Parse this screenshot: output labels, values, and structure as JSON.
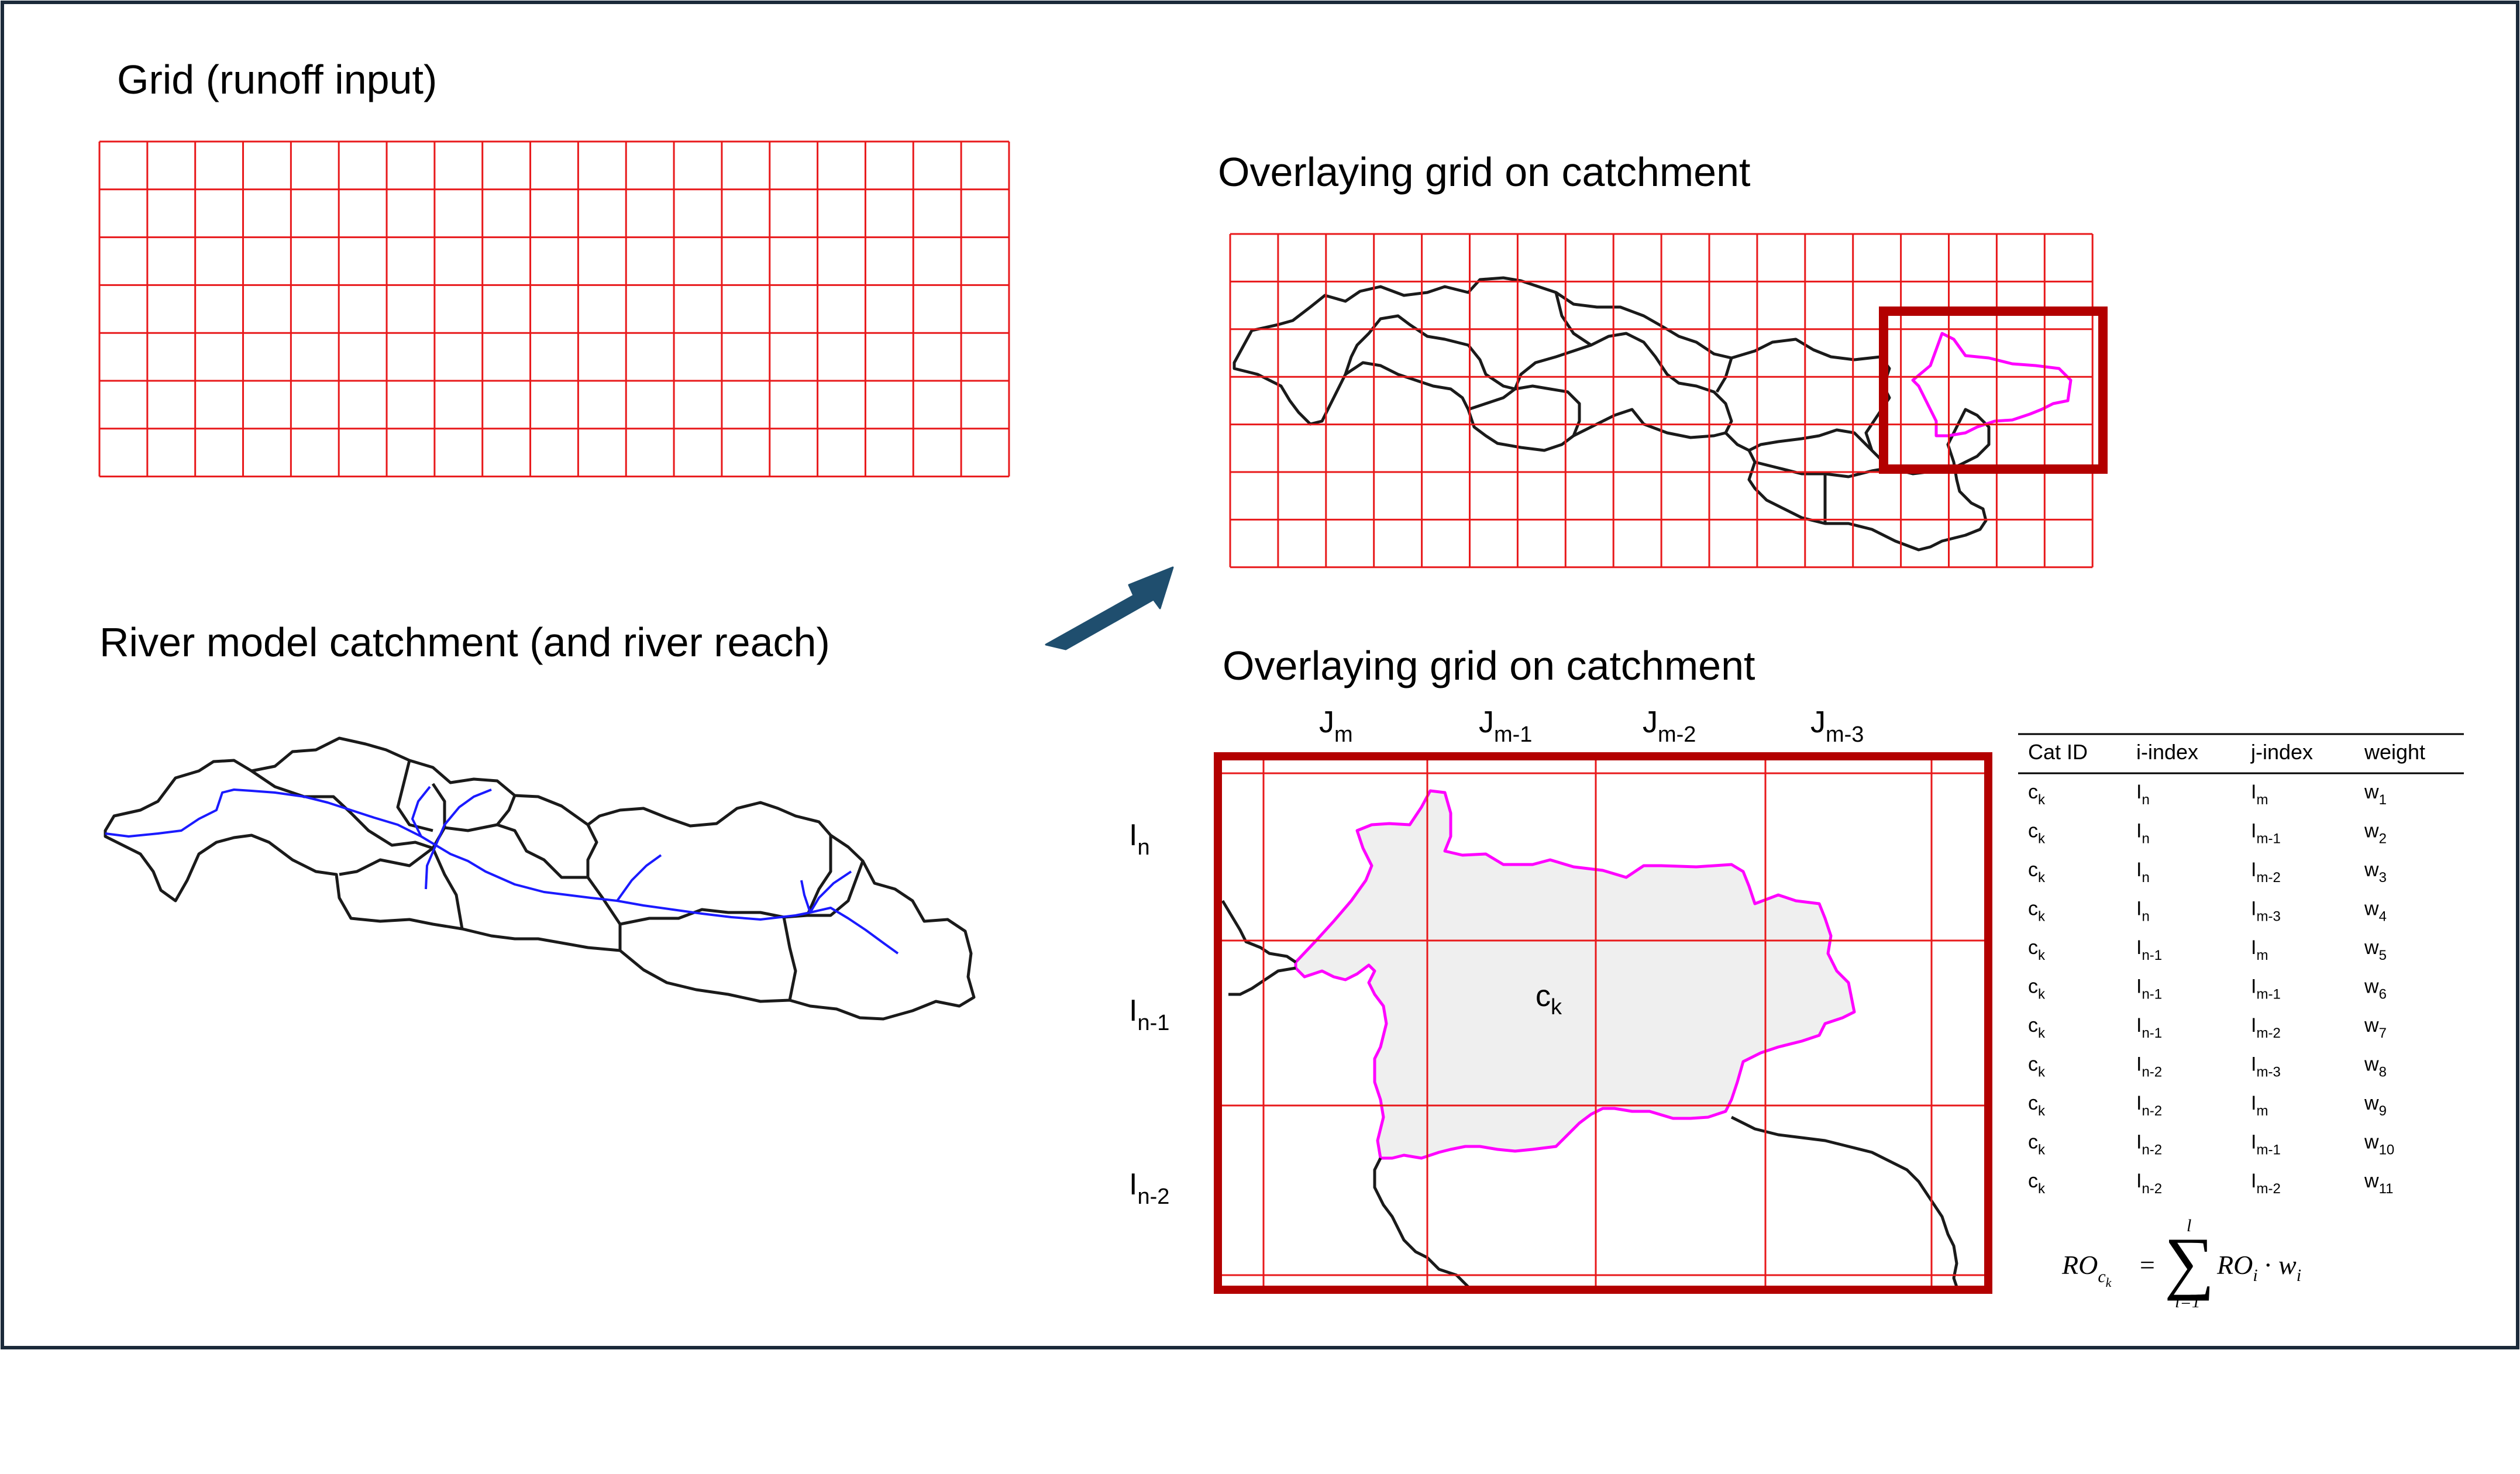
{
  "titles": {
    "grid": "Grid (runoff input)",
    "catchment": "River model catchment (and river reach)",
    "overlay_top": "Overlaying grid on catchment",
    "overlay_bottom": "Overlaying grid on catchment"
  },
  "columns": [
    {
      "base": "J",
      "sub": "m"
    },
    {
      "base": "J",
      "sub": "m-1"
    },
    {
      "base": "J",
      "sub": "m-2"
    },
    {
      "base": "J",
      "sub": "m-3"
    }
  ],
  "rows": [
    {
      "base": "I",
      "sub": "n"
    },
    {
      "base": "I",
      "sub": "n-1"
    },
    {
      "base": "I",
      "sub": "n-2"
    }
  ],
  "cell_label": {
    "base": "c",
    "sub": "k"
  },
  "table": {
    "headers": [
      "Cat ID",
      "i-index",
      "j-index",
      "weight"
    ],
    "rows": [
      [
        {
          "b": "c",
          "s": "k"
        },
        {
          "b": "I",
          "s": "n"
        },
        {
          "b": "I",
          "s": "m"
        },
        {
          "b": "w",
          "s": "1"
        }
      ],
      [
        {
          "b": "c",
          "s": "k"
        },
        {
          "b": "I",
          "s": "n"
        },
        {
          "b": "I",
          "s": "m-1"
        },
        {
          "b": "w",
          "s": "2"
        }
      ],
      [
        {
          "b": "c",
          "s": "k"
        },
        {
          "b": "I",
          "s": "n"
        },
        {
          "b": "I",
          "s": "m-2"
        },
        {
          "b": "w",
          "s": "3"
        }
      ],
      [
        {
          "b": "c",
          "s": "k"
        },
        {
          "b": "I",
          "s": "n"
        },
        {
          "b": "I",
          "s": "m-3"
        },
        {
          "b": "w",
          "s": "4"
        }
      ],
      [
        {
          "b": "c",
          "s": "k"
        },
        {
          "b": "I",
          "s": "n-1"
        },
        {
          "b": "I",
          "s": "m"
        },
        {
          "b": "w",
          "s": "5"
        }
      ],
      [
        {
          "b": "c",
          "s": "k"
        },
        {
          "b": "I",
          "s": "n-1"
        },
        {
          "b": "I",
          "s": "m-1"
        },
        {
          "b": "w",
          "s": "6"
        }
      ],
      [
        {
          "b": "c",
          "s": "k"
        },
        {
          "b": "I",
          "s": "n-1"
        },
        {
          "b": "I",
          "s": "m-2"
        },
        {
          "b": "w",
          "s": "7"
        }
      ],
      [
        {
          "b": "c",
          "s": "k"
        },
        {
          "b": "I",
          "s": "n-2"
        },
        {
          "b": "I",
          "s": "m-3"
        },
        {
          "b": "w",
          "s": "8"
        }
      ],
      [
        {
          "b": "c",
          "s": "k"
        },
        {
          "b": "I",
          "s": "n-2"
        },
        {
          "b": "I",
          "s": "m"
        },
        {
          "b": "w",
          "s": "9"
        }
      ],
      [
        {
          "b": "c",
          "s": "k"
        },
        {
          "b": "I",
          "s": "n-2"
        },
        {
          "b": "I",
          "s": "m-1"
        },
        {
          "b": "w",
          "s": "10"
        }
      ],
      [
        {
          "b": "c",
          "s": "k"
        },
        {
          "b": "I",
          "s": "n-2"
        },
        {
          "b": "I",
          "s": "m-2"
        },
        {
          "b": "w",
          "s": "11"
        }
      ]
    ]
  },
  "formula": {
    "lhs": "RO",
    "lhs_sub": "c",
    "lhs_subsub": "k",
    "equals": "=",
    "sum_top": "l",
    "sum_bottom": "i=1",
    "term1": "RO",
    "term1_sub": "i",
    "dot": "·",
    "term2": "w",
    "term2_sub": "i"
  },
  "colors": {
    "grid": "#e8191b",
    "frame_dark_red": "#b30000",
    "highlight_catchment": "#ff00ff",
    "river": "#1a1aff",
    "arrow": "#1f4e6e",
    "border": "#1b2a3a",
    "shade": "#efefef"
  }
}
